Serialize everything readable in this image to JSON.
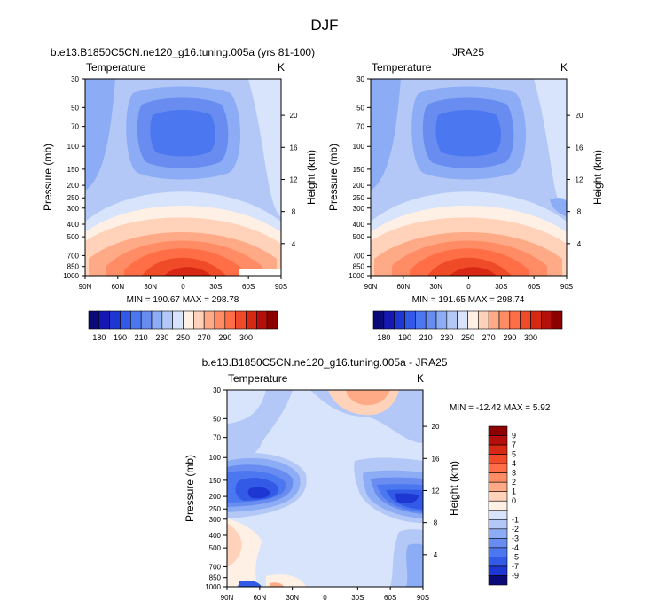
{
  "page": {
    "title": "DJF"
  },
  "chart_data": [
    {
      "type": "contour",
      "title": "b.e13.B1850C5CN.ne120_g16.tuning.005a (yrs 81-100)",
      "left_label": "Temperature",
      "right_label": "K",
      "ylabel": "Pressure (mb)",
      "ylabel_right": "Height (km)",
      "xticks": [
        "90N",
        "60N",
        "30N",
        "0",
        "30S",
        "60S",
        "90S"
      ],
      "yticks": [
        "30",
        "50",
        "70",
        "100",
        "150",
        "200",
        "250",
        "300",
        "400",
        "500",
        "700",
        "850",
        "1000"
      ],
      "height_ticks": [
        "20",
        "16",
        "12",
        "8",
        "4"
      ],
      "min_max": "MIN = 190.67  MAX = 298.78",
      "min": 190.67,
      "max": 298.78
    },
    {
      "type": "contour",
      "title": "JRA25",
      "left_label": "Temperature",
      "right_label": "K",
      "ylabel": "Pressure (mb)",
      "ylabel_right": "Height (km)",
      "xticks": [
        "90N",
        "60N",
        "30N",
        "0",
        "30S",
        "60S",
        "90S"
      ],
      "yticks": [
        "30",
        "50",
        "70",
        "100",
        "150",
        "200",
        "250",
        "300",
        "400",
        "500",
        "700",
        "850",
        "1000"
      ],
      "height_ticks": [
        "20",
        "16",
        "12",
        "8",
        "4"
      ],
      "min_max": "MIN = 191.65  MAX = 298.74",
      "min": 191.65,
      "max": 298.74
    },
    {
      "type": "contour",
      "title": "b.e13.B1850C5CN.ne120_g16.tuning.005a - JRA25",
      "left_label": "Temperature",
      "right_label": "K",
      "ylabel": "Pressure (mb)",
      "ylabel_right": "Height (km)",
      "xticks": [
        "90N",
        "60N",
        "30N",
        "0",
        "30S",
        "60S",
        "90S"
      ],
      "yticks": [
        "30",
        "50",
        "70",
        "100",
        "150",
        "200",
        "250",
        "300",
        "400",
        "500",
        "700",
        "850",
        "1000"
      ],
      "height_ticks": [
        "20",
        "16",
        "12",
        "8",
        "4"
      ],
      "min_max": "MIN = -12.42  MAX =   5.92",
      "min": -12.42,
      "max": 5.92
    }
  ],
  "colorbar_abs": {
    "labels": [
      "180",
      "190",
      "210",
      "230",
      "250",
      "270",
      "290",
      "300"
    ],
    "colors": [
      "#0a0a78",
      "#1419b4",
      "#1e37d2",
      "#325ae6",
      "#4b78f0",
      "#698cf0",
      "#8cacf5",
      "#b4c8f8",
      "#d7e4fb",
      "#fff0e6",
      "#ffd2b9",
      "#ffaa87",
      "#ff8c64",
      "#ff6e46",
      "#f04b28",
      "#d72814",
      "#b40f0a",
      "#8c0000"
    ]
  },
  "colorbar_diff": {
    "labels": [
      "9",
      "7",
      "5",
      "4",
      "3",
      "2",
      "1",
      "0",
      "-1",
      "-2",
      "-3",
      "-4",
      "-5",
      "-7",
      "-9"
    ],
    "colors": [
      "#8c0000",
      "#b40f0a",
      "#d72814",
      "#f04b28",
      "#ff6e46",
      "#ff8c64",
      "#ffaa87",
      "#ffd2b9",
      "#fff0e6",
      "#d7e4fb",
      "#b4c8f8",
      "#8cacf5",
      "#698cf0",
      "#4b78f0",
      "#325ae6",
      "#1e37d2",
      "#0a0a78"
    ]
  },
  "colors": {
    "cold": "#1e37d2",
    "cool": "#8cacf5",
    "pale": "#d7e4fb",
    "warm": "#ffaa87",
    "hot": "#f04b28"
  }
}
